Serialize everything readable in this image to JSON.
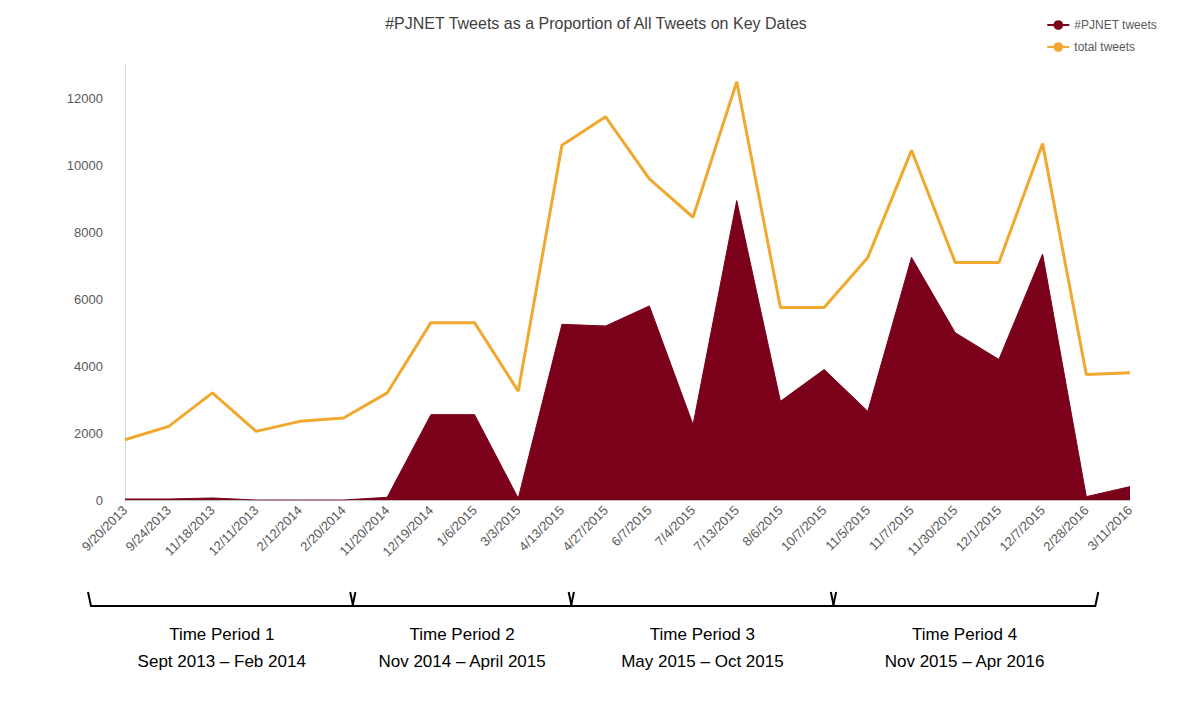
{
  "chart_data": {
    "type": "line",
    "title": "#PJNET Tweets as a Proportion of All Tweets on Key Dates",
    "categories": [
      "9/20/2013",
      "9/24/2013",
      "11/18/2013",
      "12/11/2013",
      "2/12/2014",
      "2/20/2014",
      "11/20/2014",
      "12/19/2014",
      "1/6/2015",
      "3/3/2015",
      "4/13/2015",
      "4/27/2015",
      "6/7/2015",
      "7/4/2015",
      "7/13/2015",
      "8/6/2015",
      "10/7/2015",
      "11/5/2015",
      "11/7/2015",
      "11/30/2015",
      "12/1/2015",
      "12/7/2015",
      "2/28/2016",
      "3/11/2016"
    ],
    "series": [
      {
        "name": "#PJNET tweets",
        "type": "area",
        "color": "#7B0019",
        "values": [
          30,
          30,
          60,
          0,
          0,
          0,
          80,
          2550,
          2550,
          50,
          5250,
          5200,
          5800,
          2250,
          8950,
          2950,
          3900,
          2650,
          7250,
          5000,
          4200,
          7350,
          100,
          400
        ]
      },
      {
        "name": "total tweets",
        "type": "line",
        "color": "#F0A92E",
        "values": [
          1800,
          2200,
          3200,
          2050,
          2350,
          2450,
          3200,
          5300,
          5300,
          3250,
          10600,
          11450,
          9600,
          8450,
          12500,
          5750,
          5750,
          7250,
          10450,
          7100,
          7100,
          10650,
          3750,
          3800
        ]
      }
    ],
    "ylim": [
      0,
      13000
    ],
    "yticks": [
      0,
      2000,
      4000,
      6000,
      8000,
      10000,
      12000
    ],
    "grid": false,
    "legend": "upper right",
    "annotations": [
      {
        "text": "Time Period 1",
        "subtext": "Sept 2013 – Feb 2014",
        "start": "9/20/2013",
        "end": "2/20/2014"
      },
      {
        "text": "Time Period 2",
        "subtext": "Nov 2014 – April 2015",
        "start": "11/20/2014",
        "end": "4/13/2015"
      },
      {
        "text": "Time Period 3",
        "subtext": "May 2015 – Oct 2015",
        "start": "4/27/2015",
        "end": "10/7/2015"
      },
      {
        "text": "Time Period 4",
        "subtext": "Nov 2015 – Apr 2016",
        "start": "11/5/2015",
        "end": "2/28/2016"
      }
    ]
  }
}
